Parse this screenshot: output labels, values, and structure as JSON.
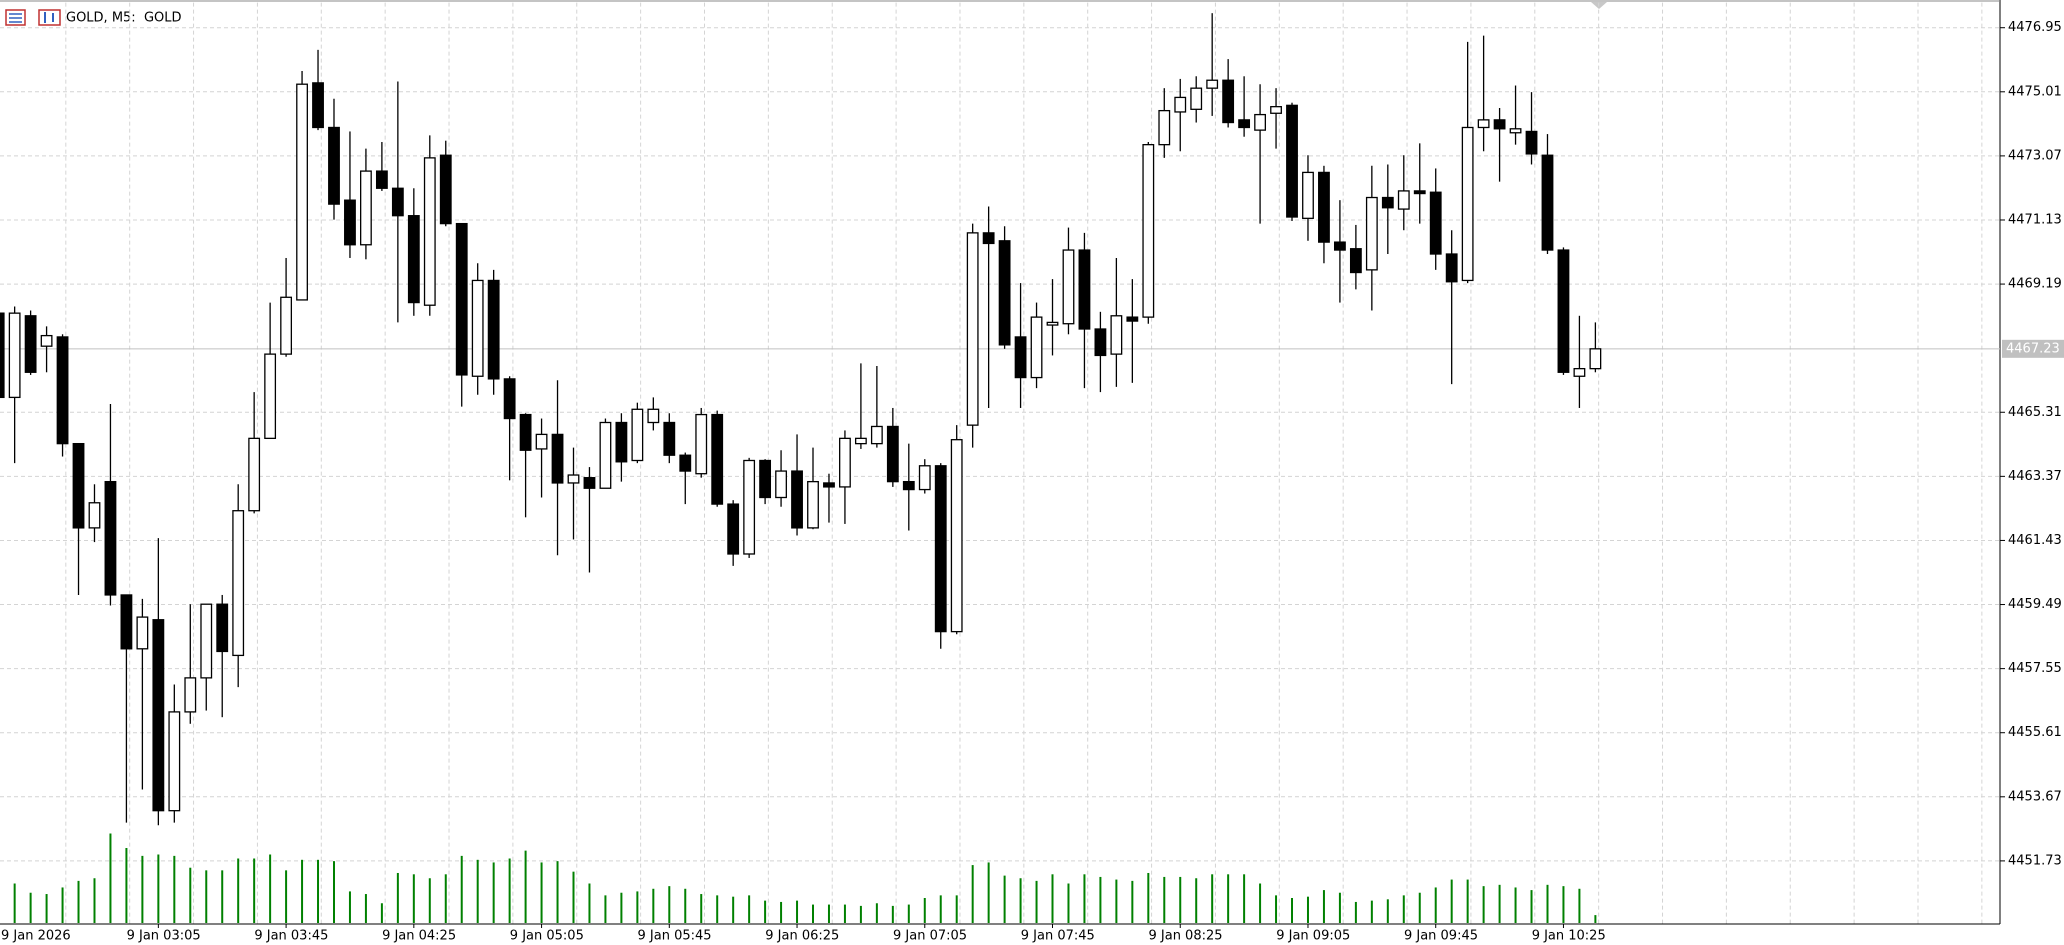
{
  "chart_data": {
    "type": "candlestick",
    "title": "GOLD, M5:  GOLD",
    "categories": [
      "9 Jan 2026",
      null,
      null,
      null,
      null,
      null,
      null,
      null,
      null,
      null,
      "9 Jan 03:05",
      null,
      null,
      null,
      null,
      null,
      null,
      null,
      "9 Jan 03:45",
      null,
      null,
      null,
      null,
      null,
      null,
      null,
      "9 Jan 04:25",
      null,
      null,
      null,
      null,
      null,
      null,
      null,
      "9 Jan 05:05",
      null,
      null,
      null,
      null,
      null,
      null,
      null,
      "9 Jan 05:45",
      null,
      null,
      null,
      null,
      null,
      null,
      null,
      "9 Jan 06:25",
      null,
      null,
      null,
      null,
      null,
      null,
      null,
      "9 Jan 07:05",
      null,
      null,
      null,
      null,
      null,
      null,
      null,
      "9 Jan 07:45",
      null,
      null,
      null,
      null,
      null,
      null,
      null,
      "9 Jan 08:25",
      null,
      null,
      null,
      null,
      null,
      null,
      null,
      "9 Jan 09:05",
      null,
      null,
      null,
      null,
      null,
      null,
      null,
      "9 Jan 09:45",
      null,
      null,
      null,
      null,
      null,
      null,
      null,
      "9 Jan 10:25",
      null,
      null
    ],
    "open": [
      4468.31,
      4465.76,
      4468.23,
      4467.31,
      4467.59,
      4464.36,
      4461.81,
      4463.21,
      4459.78,
      4458.15,
      4459.03,
      4453.25,
      4456.24,
      4457.27,
      4459.5,
      4457.95,
      4462.33,
      4464.52,
      4467.07,
      4468.71,
      4475.28,
      4473.93,
      4471.73,
      4470.38,
      4472.61,
      4472.09,
      4471.26,
      4468.55,
      4473.09,
      4471.02,
      4466.4,
      4469.3,
      4466.32,
      4465.24,
      4464.2,
      4464.64,
      4463.17,
      4463.33,
      4463.01,
      4465.0,
      4463.85,
      4465.0,
      4465.0,
      4464.01,
      4463.45,
      4465.24,
      4462.53,
      4461.02,
      4463.85,
      4462.73,
      4463.53,
      4461.81,
      4463.17,
      4463.05,
      4464.36,
      4464.36,
      4464.88,
      4463.21,
      4462.97,
      4463.69,
      4458.67,
      4464.92,
      4470.74,
      4470.5,
      4467.59,
      4466.36,
      4467.95,
      4467.99,
      4470.22,
      4467.83,
      4467.07,
      4468.19,
      4468.19,
      4473.41,
      4474.4,
      4474.48,
      4475.12,
      4475.36,
      4474.16,
      4473.85,
      4474.36,
      4474.6,
      4471.18,
      4472.57,
      4470.46,
      4470.26,
      4469.62,
      4471.81,
      4471.46,
      4472.01,
      4471.97,
      4470.1,
      4469.3,
      4473.93,
      4474.16,
      4473.77,
      4473.81,
      4473.09,
      4470.22,
      4466.4,
      4466.63
    ],
    "high": [
      4468.51,
      4468.51,
      4468.39,
      4467.91,
      4467.67,
      4464.36,
      4463.13,
      4465.56,
      4459.78,
      4459.66,
      4461.5,
      4457.07,
      4459.5,
      4459.5,
      4459.78,
      4463.13,
      4465.92,
      4468.63,
      4469.98,
      4475.64,
      4476.28,
      4474.8,
      4473.81,
      4473.29,
      4473.49,
      4475.32,
      4472.09,
      4473.69,
      4473.53,
      4471.02,
      4469.82,
      4469.62,
      4466.4,
      4465.28,
      4465.12,
      4466.28,
      4464.24,
      4463.65,
      4465.12,
      4465.28,
      4465.6,
      4465.76,
      4465.28,
      4464.09,
      4465.44,
      4465.36,
      4462.65,
      4463.93,
      4463.89,
      4464.16,
      4464.64,
      4464.24,
      4463.45,
      4464.76,
      4466.79,
      4466.71,
      4465.44,
      4464.36,
      4463.89,
      4463.77,
      4464.92,
      4471.02,
      4471.54,
      4470.94,
      4469.22,
      4468.63,
      4469.34,
      4470.9,
      4470.74,
      4468.35,
      4469.98,
      4469.34,
      4473.49,
      4475.12,
      4475.4,
      4475.48,
      4477.39,
      4476.0,
      4475.48,
      4475.24,
      4475.12,
      4474.68,
      4473.09,
      4472.77,
      4471.73,
      4470.98,
      4472.77,
      4472.81,
      4473.09,
      4473.45,
      4472.69,
      4470.82,
      4476.52,
      4476.71,
      4474.52,
      4475.2,
      4475.0,
      4473.73,
      4470.3,
      4468.23,
      4468.03
    ],
    "low": [
      4465.64,
      4463.77,
      4466.44,
      4466.52,
      4463.97,
      4459.78,
      4461.38,
      4459.46,
      4452.89,
      4453.89,
      4452.81,
      4452.89,
      4455.88,
      4456.28,
      4456.08,
      4456.99,
      4462.25,
      4464.52,
      4466.99,
      4468.71,
      4473.85,
      4471.14,
      4469.98,
      4469.94,
      4472.01,
      4468.03,
      4468.23,
      4468.23,
      4470.94,
      4465.48,
      4465.84,
      4465.84,
      4463.25,
      4462.13,
      4462.73,
      4460.98,
      4461.46,
      4460.46,
      4463.01,
      4463.21,
      4463.77,
      4464.76,
      4463.77,
      4462.53,
      4463.33,
      4462.45,
      4460.66,
      4460.9,
      4462.53,
      4462.45,
      4461.58,
      4461.77,
      4461.97,
      4461.93,
      4464.2,
      4464.24,
      4463.05,
      4461.73,
      4462.85,
      4458.15,
      4458.59,
      4464.24,
      4465.44,
      4467.23,
      4465.44,
      4466.04,
      4467.03,
      4467.67,
      4466.04,
      4465.92,
      4466.08,
      4466.2,
      4467.99,
      4473.01,
      4473.21,
      4474.08,
      4474.28,
      4473.93,
      4473.65,
      4471.02,
      4473.29,
      4471.1,
      4470.5,
      4469.82,
      4468.63,
      4469.03,
      4468.39,
      4470.1,
      4470.82,
      4471.02,
      4469.62,
      4466.16,
      4469.22,
      4473.21,
      4472.29,
      4473.41,
      4472.81,
      4470.1,
      4466.44,
      4465.44,
      4466.52
    ],
    "close": [
      4465.76,
      4468.31,
      4466.52,
      4467.63,
      4464.36,
      4461.81,
      4462.57,
      4459.78,
      4458.15,
      4459.11,
      4453.25,
      4456.24,
      4457.27,
      4459.5,
      4458.07,
      4462.33,
      4464.52,
      4467.07,
      4468.79,
      4475.24,
      4473.93,
      4471.61,
      4470.38,
      4472.61,
      4472.09,
      4471.26,
      4468.63,
      4473.01,
      4471.02,
      4466.44,
      4469.3,
      4466.32,
      4465.12,
      4464.16,
      4464.64,
      4463.17,
      4463.41,
      4463.01,
      4465.0,
      4463.81,
      4465.4,
      4465.4,
      4464.01,
      4463.53,
      4465.24,
      4462.53,
      4461.02,
      4463.85,
      4462.73,
      4463.53,
      4461.81,
      4463.21,
      4463.05,
      4464.52,
      4464.52,
      4464.88,
      4463.21,
      4462.97,
      4463.69,
      4458.67,
      4464.48,
      4470.74,
      4470.42,
      4467.35,
      4466.36,
      4468.19,
      4468.03,
      4470.22,
      4467.83,
      4467.03,
      4468.23,
      4468.07,
      4473.41,
      4474.44,
      4474.84,
      4475.12,
      4475.36,
      4474.08,
      4473.93,
      4474.32,
      4474.56,
      4471.22,
      4472.57,
      4470.46,
      4470.22,
      4469.54,
      4471.81,
      4471.5,
      4472.01,
      4471.93,
      4470.1,
      4469.26,
      4473.93,
      4474.16,
      4473.89,
      4473.89,
      4473.13,
      4470.22,
      4466.52,
      4466.63,
      4467.23
    ],
    "volume": [
      28,
      30,
      23,
      22,
      27,
      32,
      34,
      68,
      57,
      51,
      52,
      51,
      42,
      40,
      40,
      49,
      49,
      52,
      40,
      48,
      48,
      47,
      24,
      22,
      15,
      38,
      37,
      34,
      37,
      51,
      48,
      46,
      49,
      55,
      46,
      47,
      39,
      30,
      21,
      23,
      24,
      26,
      28,
      26,
      22,
      21,
      20,
      21,
      17,
      16,
      17,
      14,
      14,
      14,
      13,
      15,
      13,
      14,
      19,
      21,
      21,
      44,
      46,
      36,
      34,
      32,
      37,
      30,
      37,
      35,
      33,
      32,
      38,
      35,
      35,
      34,
      37,
      37,
      37,
      30,
      21,
      19,
      20,
      25,
      23,
      16,
      17,
      18,
      21,
      23,
      27,
      33,
      33,
      28,
      29,
      27,
      25,
      29,
      28,
      26,
      6
    ],
    "price_line": 4467.23,
    "ylim": [
      4449.82,
      4477.71
    ],
    "yticks": [
      4451.73,
      4453.67,
      4455.61,
      4457.55,
      4459.49,
      4461.43,
      4463.37,
      4465.31,
      4469.19,
      4471.13,
      4473.07,
      4475.01,
      4476.95
    ],
    "grid": true,
    "up_color": "#ffffff",
    "down_color": "#000000",
    "volume_color": "#008000"
  }
}
